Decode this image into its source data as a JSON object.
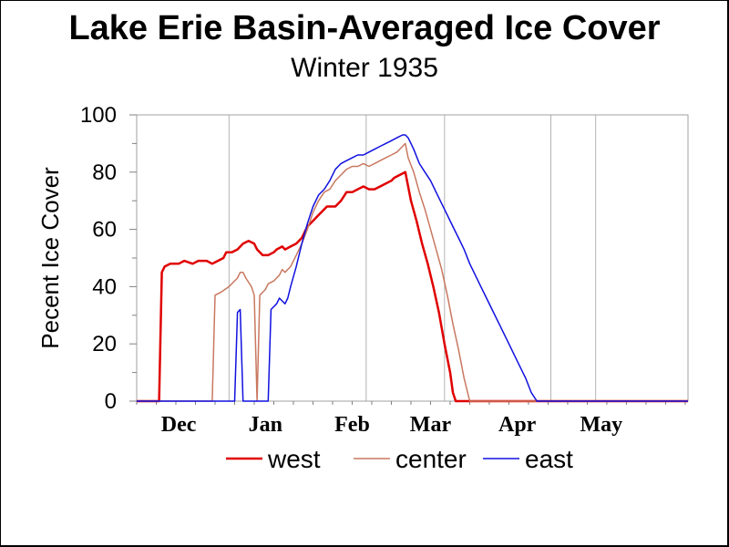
{
  "chart_data": {
    "type": "line",
    "title": "Lake Erie Basin-Averaged Ice Cover",
    "subtitle": "Winter 1935",
    "ylabel": "Pecent Ice Cover",
    "xlabel": "",
    "ylim": [
      0,
      100
    ],
    "yticks": [
      "0",
      "20",
      "40",
      "60",
      "80",
      "100"
    ],
    "x_unit": "days since Nov 21",
    "xlim": [
      0,
      197
    ],
    "month_labels": [
      {
        "label": "Dec",
        "day": 15
      },
      {
        "label": "Jan",
        "day": 46
      },
      {
        "label": "Feb",
        "day": 77
      },
      {
        "label": "Mar",
        "day": 105
      },
      {
        "label": "Apr",
        "day": 136
      },
      {
        "label": "May",
        "day": 166
      }
    ],
    "month_gridlines": [
      0,
      33,
      82,
      110,
      148,
      164,
      197
    ],
    "grid": false,
    "legend": "bottom",
    "series": [
      {
        "name": "west",
        "color": "#e00000",
        "width": 2.5,
        "points": [
          [
            0,
            0
          ],
          [
            8,
            0
          ],
          [
            9,
            45
          ],
          [
            10,
            47
          ],
          [
            12,
            48
          ],
          [
            15,
            48
          ],
          [
            17,
            49
          ],
          [
            20,
            48
          ],
          [
            22,
            49
          ],
          [
            25,
            49
          ],
          [
            27,
            48
          ],
          [
            29,
            49
          ],
          [
            31,
            50
          ],
          [
            32,
            52
          ],
          [
            34,
            52
          ],
          [
            36,
            53
          ],
          [
            38,
            55
          ],
          [
            40,
            56
          ],
          [
            42,
            55
          ],
          [
            43,
            53
          ],
          [
            45,
            51
          ],
          [
            47,
            51
          ],
          [
            49,
            52
          ],
          [
            50,
            53
          ],
          [
            52,
            54
          ],
          [
            53,
            53
          ],
          [
            55,
            54
          ],
          [
            57,
            55
          ],
          [
            59,
            57
          ],
          [
            61,
            61
          ],
          [
            63,
            63
          ],
          [
            65,
            65
          ],
          [
            66,
            66
          ],
          [
            68,
            68
          ],
          [
            71,
            68
          ],
          [
            73,
            70
          ],
          [
            75,
            73
          ],
          [
            77,
            73
          ],
          [
            79,
            74
          ],
          [
            81,
            75
          ],
          [
            83,
            74
          ],
          [
            85,
            74
          ],
          [
            87,
            75
          ],
          [
            89,
            76
          ],
          [
            91,
            77
          ],
          [
            92,
            78
          ],
          [
            94,
            79
          ],
          [
            96,
            80
          ],
          [
            97,
            75
          ],
          [
            98,
            70
          ],
          [
            100,
            63
          ],
          [
            102,
            55
          ],
          [
            104,
            48
          ],
          [
            106,
            40
          ],
          [
            108,
            31
          ],
          [
            110,
            20
          ],
          [
            112,
            10
          ],
          [
            113,
            3
          ],
          [
            114,
            0
          ],
          [
            197,
            0
          ]
        ]
      },
      {
        "name": "center",
        "color": "#c87860",
        "width": 1.5,
        "points": [
          [
            0,
            0
          ],
          [
            27,
            0
          ],
          [
            28,
            37
          ],
          [
            30,
            38
          ],
          [
            33,
            40
          ],
          [
            35,
            42
          ],
          [
            36,
            43
          ],
          [
            37,
            45
          ],
          [
            38,
            45
          ],
          [
            39,
            43
          ],
          [
            41,
            40
          ],
          [
            42,
            37
          ],
          [
            43,
            0
          ],
          [
            44,
            37
          ],
          [
            46,
            39
          ],
          [
            47,
            41
          ],
          [
            49,
            42
          ],
          [
            51,
            44
          ],
          [
            52,
            46
          ],
          [
            53,
            45
          ],
          [
            55,
            47
          ],
          [
            57,
            51
          ],
          [
            59,
            55
          ],
          [
            61,
            60
          ],
          [
            63,
            66
          ],
          [
            65,
            70
          ],
          [
            67,
            73
          ],
          [
            69,
            74
          ],
          [
            71,
            77
          ],
          [
            73,
            79
          ],
          [
            75,
            81
          ],
          [
            77,
            82
          ],
          [
            79,
            82
          ],
          [
            81,
            83
          ],
          [
            83,
            82
          ],
          [
            85,
            83
          ],
          [
            87,
            84
          ],
          [
            89,
            85
          ],
          [
            91,
            86
          ],
          [
            93,
            87
          ],
          [
            95,
            89
          ],
          [
            96,
            90
          ],
          [
            97,
            85
          ],
          [
            99,
            80
          ],
          [
            101,
            73
          ],
          [
            103,
            67
          ],
          [
            105,
            60
          ],
          [
            107,
            53
          ],
          [
            109,
            46
          ],
          [
            111,
            37
          ],
          [
            113,
            27
          ],
          [
            115,
            18
          ],
          [
            117,
            8
          ],
          [
            119,
            0
          ],
          [
            197,
            0
          ]
        ]
      },
      {
        "name": "east",
        "color": "#1010e0",
        "width": 1.5,
        "points": [
          [
            0,
            0
          ],
          [
            35,
            0
          ],
          [
            36,
            31
          ],
          [
            37,
            32
          ],
          [
            38,
            0
          ],
          [
            47,
            0
          ],
          [
            48,
            32
          ],
          [
            49,
            33
          ],
          [
            50,
            34
          ],
          [
            51,
            36
          ],
          [
            52,
            35
          ],
          [
            53,
            34
          ],
          [
            54,
            36
          ],
          [
            55,
            40
          ],
          [
            57,
            47
          ],
          [
            59,
            55
          ],
          [
            61,
            62
          ],
          [
            63,
            68
          ],
          [
            65,
            72
          ],
          [
            67,
            74
          ],
          [
            69,
            77
          ],
          [
            71,
            81
          ],
          [
            73,
            83
          ],
          [
            75,
            84
          ],
          [
            77,
            85
          ],
          [
            79,
            86
          ],
          [
            81,
            86
          ],
          [
            83,
            87
          ],
          [
            85,
            88
          ],
          [
            87,
            89
          ],
          [
            89,
            90
          ],
          [
            91,
            91
          ],
          [
            93,
            92
          ],
          [
            95,
            93
          ],
          [
            96,
            93
          ],
          [
            97,
            92
          ],
          [
            99,
            88
          ],
          [
            101,
            83
          ],
          [
            103,
            80
          ],
          [
            105,
            77
          ],
          [
            107,
            73
          ],
          [
            109,
            69
          ],
          [
            111,
            65
          ],
          [
            113,
            61
          ],
          [
            115,
            57
          ],
          [
            117,
            53
          ],
          [
            119,
            48
          ],
          [
            121,
            44
          ],
          [
            123,
            40
          ],
          [
            125,
            36
          ],
          [
            127,
            32
          ],
          [
            129,
            28
          ],
          [
            131,
            24
          ],
          [
            133,
            20
          ],
          [
            135,
            16
          ],
          [
            137,
            12
          ],
          [
            139,
            8
          ],
          [
            141,
            3
          ],
          [
            143,
            0
          ],
          [
            197,
            0
          ]
        ]
      }
    ]
  }
}
